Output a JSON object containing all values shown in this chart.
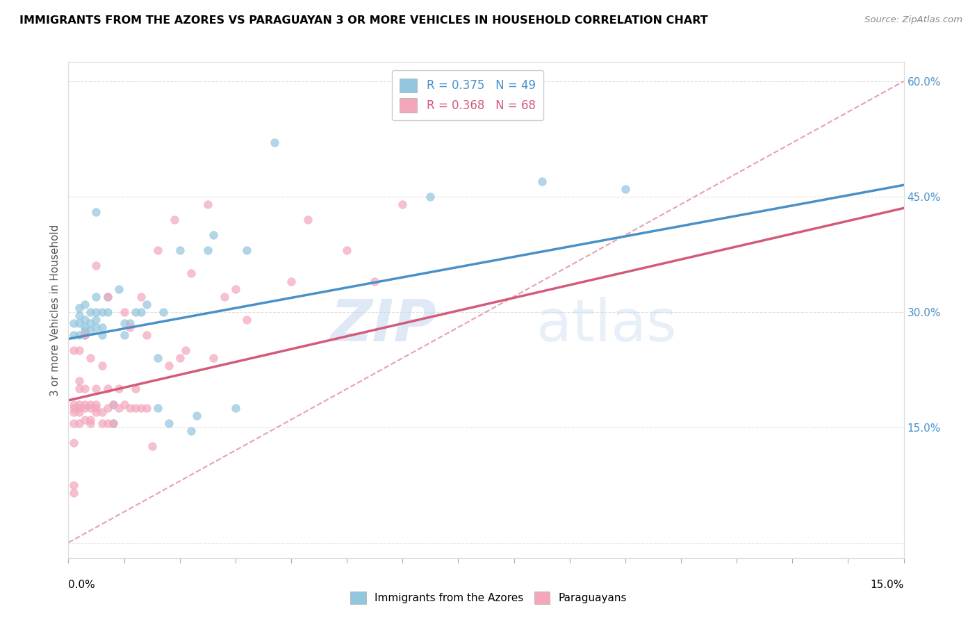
{
  "title": "IMMIGRANTS FROM THE AZORES VS PARAGUAYAN 3 OR MORE VEHICLES IN HOUSEHOLD CORRELATION CHART",
  "source": "Source: ZipAtlas.com",
  "ylabel": "3 or more Vehicles in Household",
  "xlim": [
    0.0,
    0.15
  ],
  "ylim": [
    -0.02,
    0.625
  ],
  "plot_ylim": [
    0.0,
    0.625
  ],
  "xticks_major": [
    0.0,
    0.05,
    0.1,
    0.15
  ],
  "xticks_minor": [
    0.0,
    0.01,
    0.02,
    0.03,
    0.04,
    0.05,
    0.06,
    0.07,
    0.08,
    0.09,
    0.1,
    0.11,
    0.12,
    0.13,
    0.14,
    0.15
  ],
  "yticks": [
    0.0,
    0.15,
    0.3,
    0.45,
    0.6
  ],
  "ytick_labels_right": [
    "",
    "15.0%",
    "30.0%",
    "45.0%",
    "60.0%"
  ],
  "xtick_label_left": "0.0%",
  "xtick_label_right": "15.0%",
  "legend_r1": "R = 0.375",
  "legend_n1": "N = 49",
  "legend_r2": "R = 0.368",
  "legend_n2": "N = 68",
  "color_blue": "#92c5de",
  "color_pink": "#f4a6bb",
  "color_blue_text": "#4a90c8",
  "color_pink_text": "#d45a7a",
  "color_line_blue": "#4a90c8",
  "color_line_pink": "#d45a7a",
  "color_diagonal": "#e8a0b0",
  "legend_label1": "Immigrants from the Azores",
  "legend_label2": "Paraguayans",
  "azores_x": [
    0.001,
    0.001,
    0.002,
    0.002,
    0.002,
    0.002,
    0.003,
    0.003,
    0.003,
    0.003,
    0.003,
    0.004,
    0.004,
    0.004,
    0.005,
    0.005,
    0.005,
    0.005,
    0.005,
    0.006,
    0.006,
    0.006,
    0.007,
    0.007,
    0.008,
    0.008,
    0.009,
    0.01,
    0.01,
    0.011,
    0.012,
    0.013,
    0.014,
    0.016,
    0.016,
    0.017,
    0.018,
    0.02,
    0.022,
    0.023,
    0.025,
    0.026,
    0.03,
    0.032,
    0.037,
    0.06,
    0.065,
    0.085,
    0.1
  ],
  "azores_y": [
    0.27,
    0.285,
    0.27,
    0.285,
    0.295,
    0.305,
    0.27,
    0.275,
    0.28,
    0.29,
    0.31,
    0.275,
    0.285,
    0.3,
    0.28,
    0.29,
    0.3,
    0.32,
    0.43,
    0.27,
    0.28,
    0.3,
    0.3,
    0.32,
    0.155,
    0.18,
    0.33,
    0.27,
    0.285,
    0.285,
    0.3,
    0.3,
    0.31,
    0.175,
    0.24,
    0.3,
    0.155,
    0.38,
    0.145,
    0.165,
    0.38,
    0.4,
    0.175,
    0.38,
    0.52,
    0.6,
    0.45,
    0.47,
    0.46
  ],
  "paraguayan_x": [
    0.001,
    0.001,
    0.001,
    0.001,
    0.001,
    0.001,
    0.001,
    0.001,
    0.002,
    0.002,
    0.002,
    0.002,
    0.002,
    0.002,
    0.002,
    0.003,
    0.003,
    0.003,
    0.003,
    0.003,
    0.004,
    0.004,
    0.004,
    0.004,
    0.004,
    0.005,
    0.005,
    0.005,
    0.005,
    0.005,
    0.006,
    0.006,
    0.006,
    0.007,
    0.007,
    0.007,
    0.007,
    0.008,
    0.008,
    0.009,
    0.009,
    0.01,
    0.01,
    0.011,
    0.011,
    0.012,
    0.012,
    0.013,
    0.013,
    0.014,
    0.014,
    0.015,
    0.016,
    0.018,
    0.019,
    0.02,
    0.021,
    0.022,
    0.025,
    0.026,
    0.028,
    0.03,
    0.032,
    0.04,
    0.043,
    0.05,
    0.055,
    0.06
  ],
  "paraguayan_y": [
    0.065,
    0.075,
    0.13,
    0.155,
    0.17,
    0.175,
    0.18,
    0.25,
    0.155,
    0.17,
    0.175,
    0.18,
    0.2,
    0.21,
    0.25,
    0.16,
    0.175,
    0.18,
    0.2,
    0.27,
    0.155,
    0.16,
    0.175,
    0.18,
    0.24,
    0.17,
    0.175,
    0.18,
    0.2,
    0.36,
    0.155,
    0.17,
    0.23,
    0.155,
    0.175,
    0.2,
    0.32,
    0.155,
    0.18,
    0.175,
    0.2,
    0.18,
    0.3,
    0.175,
    0.28,
    0.175,
    0.2,
    0.175,
    0.32,
    0.175,
    0.27,
    0.125,
    0.38,
    0.23,
    0.42,
    0.24,
    0.25,
    0.35,
    0.44,
    0.24,
    0.32,
    0.33,
    0.29,
    0.34,
    0.42,
    0.38,
    0.34,
    0.44
  ],
  "azores_trend": [
    0.0,
    0.15,
    0.265,
    0.465
  ],
  "paraguayan_trend": [
    0.0,
    0.15,
    0.185,
    0.435
  ],
  "watermark_zip": "ZIP",
  "watermark_atlas": "atlas",
  "background_color": "#ffffff",
  "grid_color": "#e0e0e0"
}
